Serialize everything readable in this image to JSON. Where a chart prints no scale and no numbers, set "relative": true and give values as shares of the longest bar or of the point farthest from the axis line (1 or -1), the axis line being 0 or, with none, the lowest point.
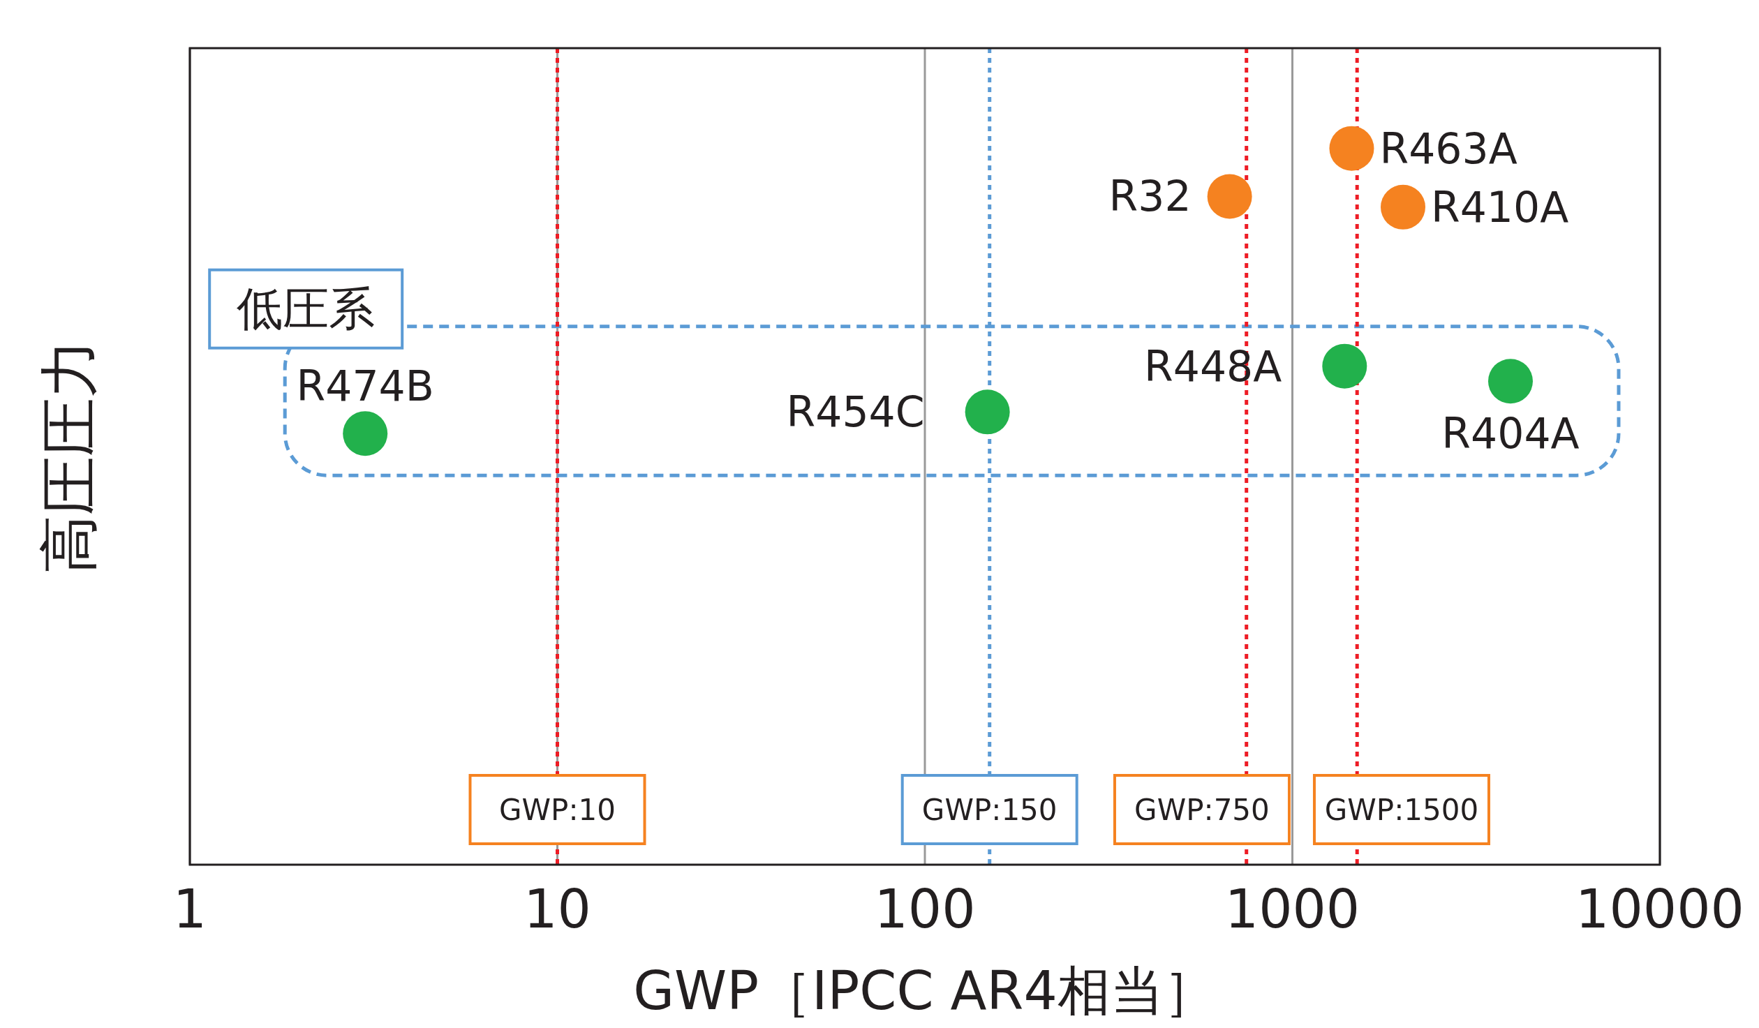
{
  "chart_data": {
    "type": "scatter",
    "xlabel": "GWP［IPCC AR4相当］",
    "ylabel": "高圧圧力",
    "log": "x",
    "relative": true,
    "grid": "x",
    "marker": "circle",
    "xlim": [
      1,
      10000
    ],
    "xticks": [
      1,
      10,
      100,
      1000,
      10000
    ],
    "series": [
      {
        "color": "#f58220",
        "x": [
          675,
          1450,
          2000
        ],
        "values": [
          0.933,
          1.0,
          0.918
        ]
      },
      {
        "color": "#22b14c",
        "x": [
          3,
          148,
          1387,
          3922
        ],
        "values": [
          0.602,
          0.632,
          0.696,
          0.675
        ]
      }
    ],
    "ref_lines": [
      {
        "axis": "x",
        "value": 10,
        "label": "GWP:10",
        "color": "#ee1c25",
        "line_style": "dotted"
      },
      {
        "axis": "x",
        "value": 150,
        "label": "GWP:150",
        "color": "#5b9bd5",
        "line_style": "dotted"
      },
      {
        "axis": "x",
        "value": 750,
        "label": "GWP:750",
        "color": "#ee1c25",
        "line_style": "dotted"
      },
      {
        "axis": "x",
        "value": 1500,
        "label": "GWP:1500",
        "color": "#ee1c25",
        "line_style": "dotted"
      }
    ],
    "annotations": [
      {
        "text": "R32",
        "x": 675,
        "y": 0.933
      },
      {
        "text": "R463A",
        "x": 1450,
        "y": 1.0
      },
      {
        "text": "R410A",
        "x": 2000,
        "y": 0.918
      },
      {
        "text": "R474B",
        "x": 3,
        "y": 0.602
      },
      {
        "text": "R454C",
        "x": 148,
        "y": 0.632
      },
      {
        "text": "R448A",
        "x": 1387,
        "y": 0.696
      },
      {
        "text": "R404A",
        "x": 3922,
        "y": 0.675
      },
      "低圧系"
    ]
  }
}
